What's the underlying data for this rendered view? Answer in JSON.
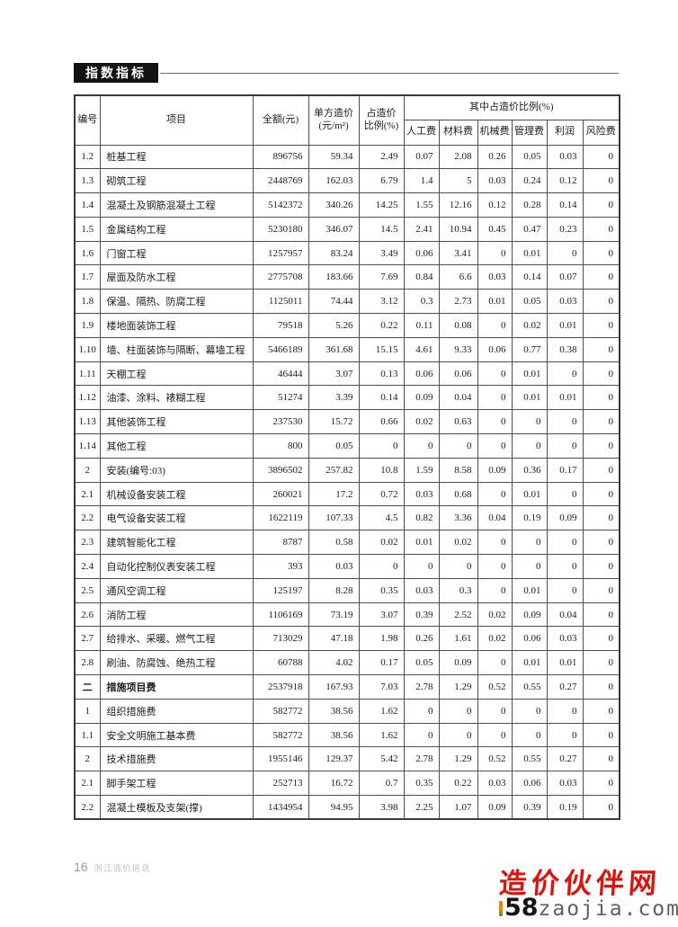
{
  "section": {
    "title": "指数指标"
  },
  "table": {
    "header": {
      "no": "编号",
      "project": "项目",
      "total": "全额(元)",
      "unit_price_l1": "单方造价",
      "unit_price_l2": "(元/m²)",
      "cost_ratio_l1": "占造价",
      "cost_ratio_l2": "比例(%)",
      "group": "其中占造价比例(%)",
      "sub": [
        "人工费",
        "材料费",
        "机械费",
        "管理费",
        "利润",
        "风险费"
      ]
    },
    "rows": [
      {
        "no": "1.2",
        "name": "桩基工程",
        "values": [
          "896756",
          "59.34",
          "2.49",
          "0.07",
          "2.08",
          "0.26",
          "0.05",
          "0.03",
          "0"
        ]
      },
      {
        "no": "1.3",
        "name": "砌筑工程",
        "values": [
          "2448769",
          "162.03",
          "6.79",
          "1.4",
          "5",
          "0.03",
          "0.24",
          "0.12",
          "0"
        ]
      },
      {
        "no": "1.4",
        "name": "混凝土及钢筋混凝土工程",
        "values": [
          "5142372",
          "340.26",
          "14.25",
          "1.55",
          "12.16",
          "0.12",
          "0.28",
          "0.14",
          "0"
        ]
      },
      {
        "no": "1.5",
        "name": "金属结构工程",
        "values": [
          "5230180",
          "346.07",
          "14.5",
          "2.41",
          "10.94",
          "0.45",
          "0.47",
          "0.23",
          "0"
        ]
      },
      {
        "no": "1.6",
        "name": "门窗工程",
        "values": [
          "1257957",
          "83.24",
          "3.49",
          "0.06",
          "3.41",
          "0",
          "0.01",
          "0",
          "0"
        ]
      },
      {
        "no": "1.7",
        "name": "屋面及防水工程",
        "values": [
          "2775708",
          "183.66",
          "7.69",
          "0.84",
          "6.6",
          "0.03",
          "0.14",
          "0.07",
          "0"
        ]
      },
      {
        "no": "1.8",
        "name": "保温、隔热、防腐工程",
        "values": [
          "1125011",
          "74.44",
          "3.12",
          "0.3",
          "2.73",
          "0.01",
          "0.05",
          "0.03",
          "0"
        ]
      },
      {
        "no": "1.9",
        "name": "楼地面装饰工程",
        "values": [
          "79518",
          "5.26",
          "0.22",
          "0.11",
          "0.08",
          "0",
          "0.02",
          "0.01",
          "0"
        ]
      },
      {
        "no": "1.10",
        "name": "墙、柱面装饰与隔断、幕墙工程",
        "values": [
          "5466189",
          "361.68",
          "15.15",
          "4.61",
          "9.33",
          "0.06",
          "0.77",
          "0.38",
          "0"
        ]
      },
      {
        "no": "1.11",
        "name": "天棚工程",
        "values": [
          "46444",
          "3.07",
          "0.13",
          "0.06",
          "0.06",
          "0",
          "0.01",
          "0",
          "0"
        ]
      },
      {
        "no": "1.12",
        "name": "油漆、涂料、裱糊工程",
        "values": [
          "51274",
          "3.39",
          "0.14",
          "0.09",
          "0.04",
          "0",
          "0.01",
          "0.01",
          "0"
        ]
      },
      {
        "no": "1.13",
        "name": "其他装饰工程",
        "values": [
          "237530",
          "15.72",
          "0.66",
          "0.02",
          "0.63",
          "0",
          "0",
          "0",
          "0"
        ]
      },
      {
        "no": "1.14",
        "name": "其他工程",
        "values": [
          "800",
          "0.05",
          "0",
          "0",
          "0",
          "0",
          "0",
          "0",
          "0"
        ]
      },
      {
        "no": "2",
        "name": "安装(编号:03)",
        "values": [
          "3896502",
          "257.82",
          "10.8",
          "1.59",
          "8.58",
          "0.09",
          "0.36",
          "0.17",
          "0"
        ]
      },
      {
        "no": "2.1",
        "name": "机械设备安装工程",
        "values": [
          "260021",
          "17.2",
          "0.72",
          "0.03",
          "0.68",
          "0",
          "0.01",
          "0",
          "0"
        ]
      },
      {
        "no": "2.2",
        "name": "电气设备安装工程",
        "values": [
          "1622119",
          "107.33",
          "4.5",
          "0.82",
          "3.36",
          "0.04",
          "0.19",
          "0.09",
          "0"
        ]
      },
      {
        "no": "2.3",
        "name": "建筑智能化工程",
        "values": [
          "8787",
          "0.58",
          "0.02",
          "0.01",
          "0.02",
          "0",
          "0",
          "0",
          "0"
        ]
      },
      {
        "no": "2.4",
        "name": "自动化控制仪表安装工程",
        "values": [
          "393",
          "0.03",
          "0",
          "0",
          "0",
          "0",
          "0",
          "0",
          "0"
        ]
      },
      {
        "no": "2.5",
        "name": "通风空调工程",
        "values": [
          "125197",
          "8.28",
          "0.35",
          "0.03",
          "0.3",
          "0",
          "0.01",
          "0",
          "0"
        ]
      },
      {
        "no": "2.6",
        "name": "消防工程",
        "values": [
          "1106169",
          "73.19",
          "3.07",
          "0.39",
          "2.52",
          "0.02",
          "0.09",
          "0.04",
          "0"
        ]
      },
      {
        "no": "2.7",
        "name": "给排水、采暖、燃气工程",
        "values": [
          "713029",
          "47.18",
          "1.98",
          "0.26",
          "1.61",
          "0.02",
          "0.06",
          "0.03",
          "0"
        ]
      },
      {
        "no": "2.8",
        "name": "刷油、防腐蚀、绝热工程",
        "values": [
          "60788",
          "4.02",
          "0.17",
          "0.05",
          "0.09",
          "0",
          "0.01",
          "0.01",
          "0"
        ]
      },
      {
        "no": "二",
        "name": "措施项目费",
        "bold": true,
        "values": [
          "2537918",
          "167.93",
          "7.03",
          "2.78",
          "1.29",
          "0.52",
          "0.55",
          "0.27",
          "0"
        ]
      },
      {
        "no": "1",
        "name": "组织措施费",
        "values": [
          "582772",
          "38.56",
          "1.62",
          "0",
          "0",
          "0",
          "0",
          "0",
          "0"
        ]
      },
      {
        "no": "1.1",
        "name": "安全文明施工基本费",
        "values": [
          "582772",
          "38.56",
          "1.62",
          "0",
          "0",
          "0",
          "0",
          "0",
          "0"
        ]
      },
      {
        "no": "2",
        "name": "技术措施费",
        "values": [
          "1955146",
          "129.37",
          "5.42",
          "2.78",
          "1.29",
          "0.52",
          "0.55",
          "0.27",
          "0"
        ]
      },
      {
        "no": "2.1",
        "name": "脚手架工程",
        "values": [
          "252713",
          "16.72",
          "0.7",
          "0.35",
          "0.22",
          "0.03",
          "0.06",
          "0.03",
          "0"
        ]
      },
      {
        "no": "2.2",
        "name": "混凝土模板及支架(撑)",
        "values": [
          "1434954",
          "94.95",
          "3.98",
          "2.25",
          "1.07",
          "0.09",
          "0.39",
          "0.19",
          "0"
        ]
      }
    ]
  },
  "footer": {
    "page_number": "16",
    "journal": "浙江造价信息"
  },
  "watermark": {
    "line1": "造价伙伴网",
    "line2_bold": "58",
    "line2_rest": "zaojia.com",
    "accent_color": "#f08300",
    "red_color": "#d9150d"
  }
}
